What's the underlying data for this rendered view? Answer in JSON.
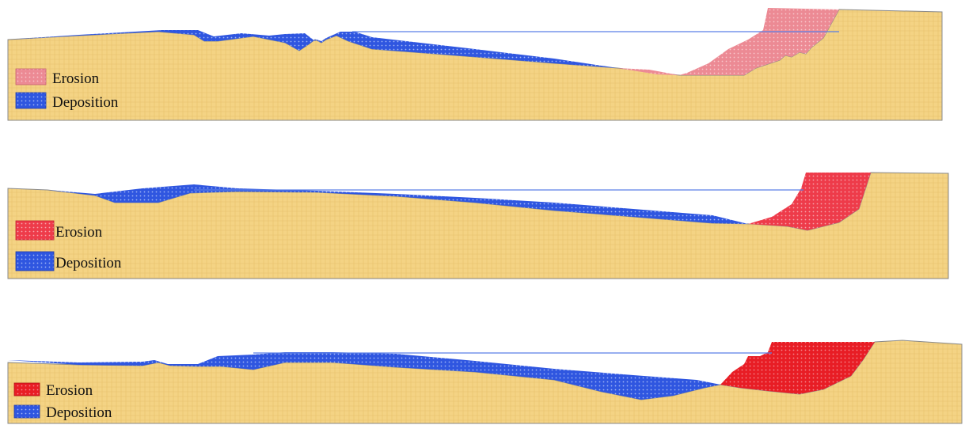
{
  "colors": {
    "soil": "#f4d384",
    "soil_edge": "#8a8a8a",
    "erosion_panel_1": "#ec8a94",
    "erosion_panel_2": "#ee3b4a",
    "erosion_panel_3": "#e81d25",
    "deposition": "#2f56e0",
    "water_line": "#5a7fe6"
  },
  "panels": [
    {
      "legend": {
        "erosion": "Erosion",
        "deposition": "Deposition"
      }
    },
    {
      "legend": {
        "erosion": "Erosion",
        "deposition": "Deposition"
      }
    },
    {
      "legend": {
        "erosion": "Erosion",
        "deposition": "Deposition"
      }
    }
  ]
}
